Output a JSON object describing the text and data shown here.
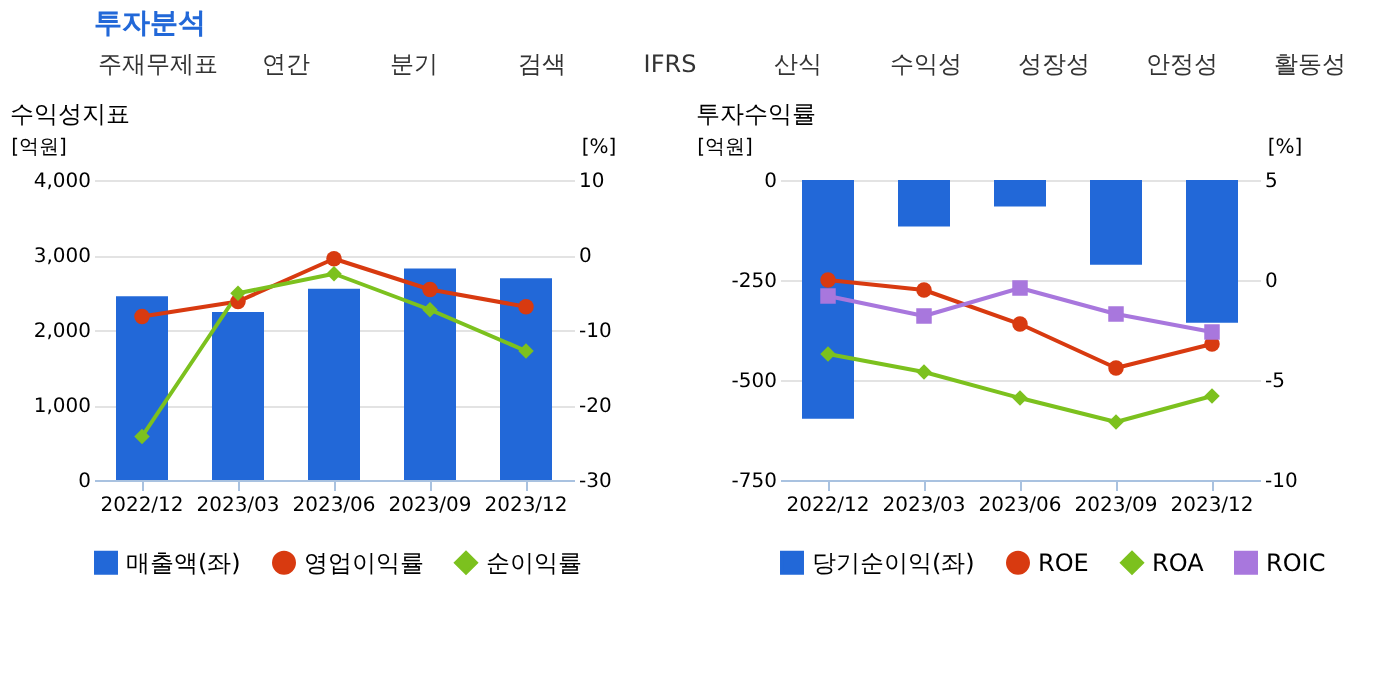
{
  "chart_data": [
    {
      "type": "other",
      "title": "투자분석",
      "annotations": [
        "주재무제표",
        "연간",
        "분기",
        "검색",
        "IFRS",
        "산식",
        "수익성",
        "성장성",
        "안정성",
        "활동성"
      ]
    },
    {
      "type": "bar",
      "title": "수익성지표",
      "categories": [
        "2022/12",
        "2023/03",
        "2023/06",
        "2023/09",
        "2023/12"
      ],
      "ylabel": "[억원]",
      "y2label": "[%]",
      "ylim": [
        0,
        4000
      ],
      "yticks": [
        0,
        {
          "value": 1000,
          "label": "1,000"
        },
        {
          "value": 2000,
          "label": "2,000"
        },
        {
          "value": 3000,
          "label": "3,000"
        },
        {
          "value": 4000,
          "label": "4,000"
        }
      ],
      "y2lim": [
        -30,
        10
      ],
      "y2ticks": [
        -30,
        -20,
        -10,
        0,
        10
      ],
      "grid": "y",
      "legend": "bottom",
      "series": [
        {
          "name": "매출액(좌)",
          "type": "bar",
          "color": "#2268d8",
          "values": [
            2450,
            2240,
            2550,
            2820,
            2690
          ]
        },
        {
          "name": "영업이익률",
          "type": "line",
          "axis": "y2",
          "marker": "circle",
          "color": "#d83a10",
          "values": [
            -8.2,
            -6.2,
            -0.5,
            -4.6,
            -6.9
          ]
        },
        {
          "name": "순이익률",
          "type": "line",
          "axis": "y2",
          "marker": "diamond",
          "color": "#7cc11e",
          "values": [
            -24.2,
            -5.1,
            -2.5,
            -7.3,
            -12.8
          ]
        }
      ]
    },
    {
      "type": "bar",
      "title": "투자수익률",
      "categories": [
        "2022/12",
        "2023/03",
        "2023/06",
        "2023/09",
        "2023/12"
      ],
      "ylabel": "[억원]",
      "y2label": "[%]",
      "ylim": [
        -750,
        0
      ],
      "yticks": [
        -750,
        -500,
        -250,
        0
      ],
      "y2lim": [
        -10,
        5
      ],
      "y2ticks": [
        -10,
        -5,
        0,
        5
      ],
      "grid": "y",
      "legend": "bottom",
      "series": [
        {
          "name": "당기순이익(좌)",
          "type": "bar",
          "color": "#2268d8",
          "values": [
            -597,
            -116,
            -66,
            -212,
            -357
          ]
        },
        {
          "name": "ROE",
          "type": "line",
          "axis": "y2",
          "marker": "circle",
          "color": "#d83a10",
          "values": [
            0.0,
            -0.5,
            -2.2,
            -4.4,
            -3.2
          ]
        },
        {
          "name": "ROA",
          "type": "line",
          "axis": "y2",
          "marker": "diamond",
          "color": "#7cc11e",
          "values": [
            -3.7,
            -4.6,
            -5.9,
            -7.1,
            -5.8
          ]
        },
        {
          "name": "ROIC",
          "type": "line",
          "axis": "y2",
          "marker": "square",
          "color": "#a877dd",
          "values": [
            -0.8,
            -1.8,
            -0.4,
            -1.7,
            -2.6
          ]
        }
      ]
    }
  ]
}
